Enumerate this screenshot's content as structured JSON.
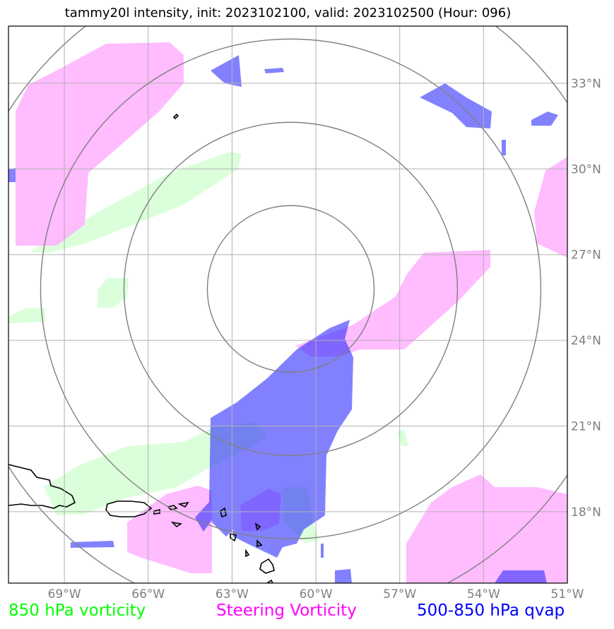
{
  "title": "tammy20l intensity, init: 2023102100, valid: 2023102500 (Hour: 096)",
  "map": {
    "lon_range": [
      -71,
      -51
    ],
    "lat_range": [
      15.5,
      35
    ],
    "center": {
      "lon": -60.9,
      "lat": 25.8
    },
    "lon_ticks": [
      {
        "value": -69,
        "label": "69°W"
      },
      {
        "value": -66,
        "label": "66°W"
      },
      {
        "value": -63,
        "label": "63°W"
      },
      {
        "value": -60,
        "label": "60°W"
      },
      {
        "value": -57,
        "label": "57°W"
      },
      {
        "value": -54,
        "label": "54°W"
      },
      {
        "value": -51,
        "label": "51°W"
      }
    ],
    "lat_ticks": [
      {
        "value": 18,
        "label": "18°N"
      },
      {
        "value": 21,
        "label": "21°N"
      },
      {
        "value": 24,
        "label": "24°N"
      },
      {
        "value": 27,
        "label": "27°N"
      },
      {
        "value": 30,
        "label": "30°N"
      },
      {
        "value": 33,
        "label": "33°N"
      }
    ],
    "range_ring_count": 4,
    "gridline_color": "#b0b0b0",
    "ring_color": "#808080"
  },
  "layers": {
    "vort850": {
      "color": "#ccffcc"
    },
    "steering": {
      "color": "#ffb0ff"
    },
    "qvap": {
      "color": "#2828ff"
    }
  },
  "legend": [
    {
      "label": "850 hPa vorticity",
      "color": "#00ff00"
    },
    {
      "label": "Steering Vorticity",
      "color": "#ff00ff"
    },
    {
      "label": "500-850 hPa qvap",
      "color": "#0000ff"
    }
  ]
}
